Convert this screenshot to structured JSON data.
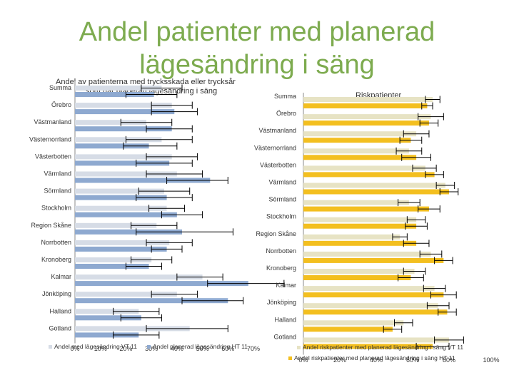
{
  "slide": {
    "title_line1": "Andel patienter med planerad",
    "title_line2": "lägesändring i säng"
  },
  "chart_data": [
    {
      "type": "bar",
      "orientation": "horizontal",
      "title": "Andel av patienterna med trycksskada eller trycksår som har planerad lägesändring i säng",
      "categories": [
        "Summa",
        "Örebro",
        "Västmanland",
        "Västernorrland",
        "Västerbotten",
        "Värmland",
        "Sörmland",
        "Stockholm",
        "Region Skåne",
        "Norrbotten",
        "Kronoberg",
        "Kalmar",
        "Jönköping",
        "Halland",
        "Gotland"
      ],
      "series": [
        {
          "name": "Andel med lägesändring VT 11",
          "color": "#d6dce6",
          "values": [
            34,
            38,
            28,
            34,
            38,
            40,
            35,
            36,
            32,
            37,
            30,
            50,
            40,
            25,
            45
          ],
          "error_low": [
            26,
            30,
            18,
            20,
            28,
            28,
            25,
            29,
            22,
            28,
            22,
            40,
            30,
            15,
            28
          ],
          "error_high": [
            42,
            46,
            38,
            46,
            48,
            50,
            45,
            43,
            40,
            46,
            38,
            58,
            48,
            33,
            60
          ]
        },
        {
          "name": "Andel planerad lägesändring HT 11",
          "color": "#8ea9d0",
          "values": [
            31,
            39,
            38,
            29,
            37,
            53,
            36,
            40,
            42,
            36,
            29,
            68,
            60,
            26,
            25
          ],
          "error_low": [
            20,
            30,
            28,
            19,
            24,
            36,
            24,
            34,
            24,
            30,
            20,
            52,
            42,
            18,
            15
          ],
          "error_high": [
            40,
            48,
            46,
            40,
            46,
            60,
            46,
            50,
            62,
            42,
            34,
            82,
            66,
            34,
            33
          ]
        }
      ],
      "xlim": [
        0,
        70
      ],
      "xticks": [
        "0%",
        "10%",
        "20%",
        "30%",
        "40%",
        "50%",
        "60%",
        "70%"
      ]
    },
    {
      "type": "bar",
      "orientation": "horizontal",
      "title": "Riskpatienter",
      "categories": [
        "Summa",
        "Örebro",
        "Västmanland",
        "Västernorrland",
        "Västerbotten",
        "Värmland",
        "Sörmland",
        "Stockholm",
        "Region Skåne",
        "Norrbotten",
        "Kronoberg",
        "Kalmar",
        "Jönköping",
        "Halland",
        "Gotland"
      ],
      "series": [
        {
          "name": "Andel riskpatienter med planerad lägesändring i säng VT 11",
          "color": "#e7e3c4",
          "values": [
            71,
            70,
            62,
            58,
            67,
            78,
            58,
            62,
            53,
            70,
            61,
            72,
            74,
            55,
            80
          ],
          "error_low": [
            67,
            63,
            55,
            51,
            60,
            73,
            52,
            57,
            49,
            64,
            55,
            66,
            68,
            50,
            72
          ],
          "error_high": [
            75,
            77,
            69,
            65,
            73,
            83,
            64,
            67,
            57,
            76,
            67,
            78,
            80,
            60,
            88
          ]
        },
        {
          "name": "Andel riskpatienter med planerad lägesändring i säng HT 11",
          "color": "#f3bf1f",
          "values": [
            68,
            69,
            59,
            62,
            72,
            80,
            69,
            62,
            62,
            77,
            59,
            77,
            79,
            49,
            71
          ],
          "error_low": [
            65,
            64,
            53,
            54,
            67,
            75,
            63,
            56,
            55,
            72,
            52,
            70,
            74,
            44,
            62
          ],
          "error_high": [
            71,
            74,
            65,
            70,
            77,
            85,
            75,
            68,
            69,
            82,
            66,
            84,
            84,
            54,
            80
          ]
        }
      ],
      "xlim": [
        0,
        100
      ],
      "xticks": [
        "0%",
        "20%",
        "40%",
        "60%",
        "80%",
        "100%"
      ]
    }
  ]
}
